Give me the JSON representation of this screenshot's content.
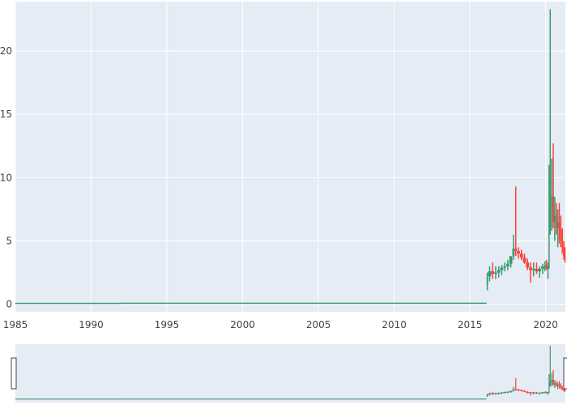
{
  "chart_data": {
    "type": "candlestick",
    "title": "",
    "xlabel": "",
    "ylabel": "",
    "xlim": [
      1985,
      2021.3
    ],
    "ylim": [
      -0.6,
      23.9
    ],
    "x_ticks": [
      "1985",
      "1990",
      "1995",
      "2000",
      "2005",
      "2010",
      "2015",
      "2020"
    ],
    "y_ticks": [
      "0",
      "5",
      "10",
      "15",
      "20"
    ],
    "grid": true,
    "has_range_slider": true,
    "colors": {
      "increasing": "#3D9970",
      "decreasing": "#FF4136",
      "plot_bg": "#E5ECF6",
      "grid": "#FFFFFF"
    },
    "series": [
      {
        "x": [
          1985.0,
          1992.0,
          1996.0,
          2000.0,
          2004.0,
          2008.0,
          2012.0,
          2016.0,
          2016.1,
          2016.2,
          2016.4,
          2016.6,
          2016.8,
          2017.0,
          2017.2,
          2017.4,
          2017.6,
          2017.8,
          2017.95,
          2018.1,
          2018.3,
          2018.5,
          2018.7,
          2018.9,
          2019.1,
          2019.3,
          2019.5,
          2019.7,
          2019.9,
          2020.0,
          2020.1,
          2020.2,
          2020.25,
          2020.35,
          2020.45,
          2020.55,
          2020.65,
          2020.75,
          2020.85,
          2020.95,
          2021.05,
          2021.15,
          2021.25
        ],
        "open": [
          0.02,
          0.03,
          0.03,
          0.03,
          0.03,
          0.03,
          0.03,
          0.03,
          1.5,
          2.2,
          2.6,
          2.4,
          2.5,
          2.7,
          2.9,
          3.0,
          3.2,
          3.8,
          4.4,
          4.2,
          4.0,
          3.7,
          3.3,
          2.9,
          2.7,
          2.8,
          2.6,
          2.8,
          3.0,
          3.1,
          2.8,
          3.0,
          6.0,
          7.5,
          8.5,
          6.5,
          7.0,
          6.0,
          6.5,
          6.0,
          5.0,
          4.5,
          3.8
        ],
        "high": [
          0.05,
          0.05,
          0.05,
          0.05,
          0.05,
          0.05,
          0.05,
          0.05,
          2.5,
          3.0,
          3.3,
          3.0,
          3.0,
          3.1,
          3.3,
          3.5,
          3.6,
          5.5,
          9.3,
          4.5,
          4.3,
          4.0,
          3.6,
          3.3,
          3.3,
          3.3,
          3.0,
          3.2,
          3.4,
          3.5,
          3.3,
          11.0,
          23.3,
          11.5,
          12.7,
          8.5,
          8.0,
          7.5,
          8.0,
          7.0,
          6.0,
          5.0,
          4.5
        ],
        "low": [
          0.0,
          0.0,
          0.0,
          0.0,
          0.0,
          0.0,
          0.0,
          0.0,
          1.1,
          1.8,
          2.0,
          2.0,
          2.1,
          2.3,
          2.6,
          2.7,
          2.9,
          3.5,
          3.8,
          3.6,
          3.5,
          3.2,
          2.7,
          1.7,
          2.2,
          2.4,
          2.1,
          2.4,
          2.6,
          2.7,
          2.0,
          2.8,
          5.5,
          5.8,
          6.0,
          5.0,
          5.5,
          4.5,
          4.8,
          4.5,
          4.0,
          3.5,
          3.3
        ],
        "close": [
          0.03,
          0.03,
          0.03,
          0.03,
          0.03,
          0.03,
          0.03,
          0.03,
          2.2,
          2.6,
          2.4,
          2.5,
          2.7,
          2.9,
          3.0,
          3.2,
          3.8,
          4.4,
          4.2,
          4.0,
          3.7,
          3.3,
          2.9,
          2.7,
          2.8,
          2.6,
          2.8,
          3.0,
          3.1,
          2.8,
          3.0,
          6.0,
          7.5,
          8.5,
          6.5,
          7.0,
          6.0,
          6.5,
          6.0,
          5.0,
          4.5,
          3.8,
          3.5
        ]
      }
    ]
  }
}
